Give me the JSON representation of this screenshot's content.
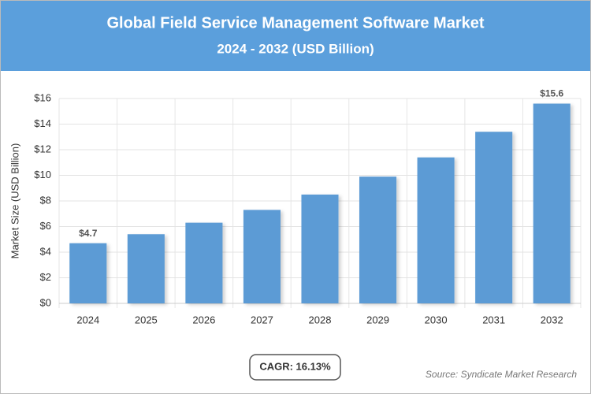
{
  "chart_data": {
    "type": "bar",
    "title": "Global Field Service Management Software Market",
    "subtitle": "2024 - 2032 (USD Billion)",
    "y_label": "Market Size (USD Billion)",
    "categories": [
      "2024",
      "2025",
      "2026",
      "2027",
      "2028",
      "2029",
      "2030",
      "2031",
      "2032"
    ],
    "values": [
      4.7,
      5.4,
      6.3,
      7.3,
      8.5,
      9.9,
      11.4,
      13.4,
      15.6
    ],
    "value_labels": [
      "$4.7",
      null,
      null,
      null,
      null,
      null,
      null,
      null,
      "$15.6"
    ],
    "color": "#5b9bd5",
    "ylim": [
      0,
      16
    ],
    "yticks": [
      {
        "value": 0,
        "label": "$0"
      },
      {
        "value": 2,
        "label": "$2"
      },
      {
        "value": 4,
        "label": "$4"
      },
      {
        "value": 6,
        "label": "$6"
      },
      {
        "value": 8,
        "label": "$8"
      },
      {
        "value": 10,
        "label": "$10"
      },
      {
        "value": 12,
        "label": "$12"
      },
      {
        "value": 14,
        "label": "$14"
      },
      {
        "value": 16,
        "label": "$16"
      }
    ],
    "grid": true,
    "annotation": "CAGR: 16.13%",
    "source": "Source: Syndicate Market Research"
  }
}
